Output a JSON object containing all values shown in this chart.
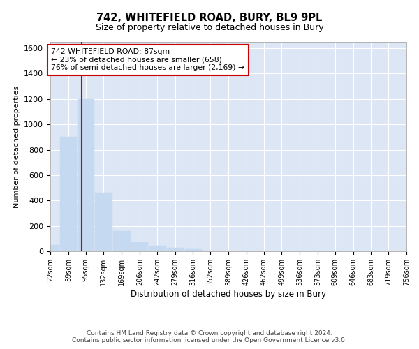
{
  "title": "742, WHITEFIELD ROAD, BURY, BL9 9PL",
  "subtitle": "Size of property relative to detached houses in Bury",
  "xlabel": "Distribution of detached houses by size in Bury",
  "ylabel": "Number of detached properties",
  "bar_color": "#c5d9f0",
  "bar_edge_color": "#c5d9f0",
  "fig_background_color": "#ffffff",
  "axes_background_color": "#dce6f5",
  "grid_color": "#ffffff",
  "annotation_line_color": "#cc0000",
  "annotation_box_edge_color": "#cc0000",
  "bin_edges": [
    22,
    59,
    95,
    132,
    169,
    206,
    242,
    279,
    316,
    352,
    389,
    426,
    462,
    499,
    536,
    573,
    609,
    646,
    683,
    719,
    756
  ],
  "bin_labels": [
    "22sqm",
    "59sqm",
    "95sqm",
    "132sqm",
    "169sqm",
    "206sqm",
    "242sqm",
    "279sqm",
    "316sqm",
    "352sqm",
    "389sqm",
    "426sqm",
    "462sqm",
    "499sqm",
    "536sqm",
    "573sqm",
    "609sqm",
    "646sqm",
    "683sqm",
    "719sqm",
    "756sqm"
  ],
  "counts": [
    50,
    900,
    1200,
    460,
    160,
    70,
    45,
    30,
    15,
    5,
    0,
    0,
    0,
    0,
    0,
    0,
    0,
    0,
    0,
    0
  ],
  "ylim": [
    0,
    1650
  ],
  "yticks": [
    0,
    200,
    400,
    600,
    800,
    1000,
    1200,
    1400,
    1600
  ],
  "vline_x": 87,
  "annotation_title": "742 WHITEFIELD ROAD: 87sqm",
  "annotation_line1": "← 23% of detached houses are smaller (658)",
  "annotation_line2": "76% of semi-detached houses are larger (2,169) →",
  "footer_line1": "Contains HM Land Registry data © Crown copyright and database right 2024.",
  "footer_line2": "Contains public sector information licensed under the Open Government Licence v3.0."
}
